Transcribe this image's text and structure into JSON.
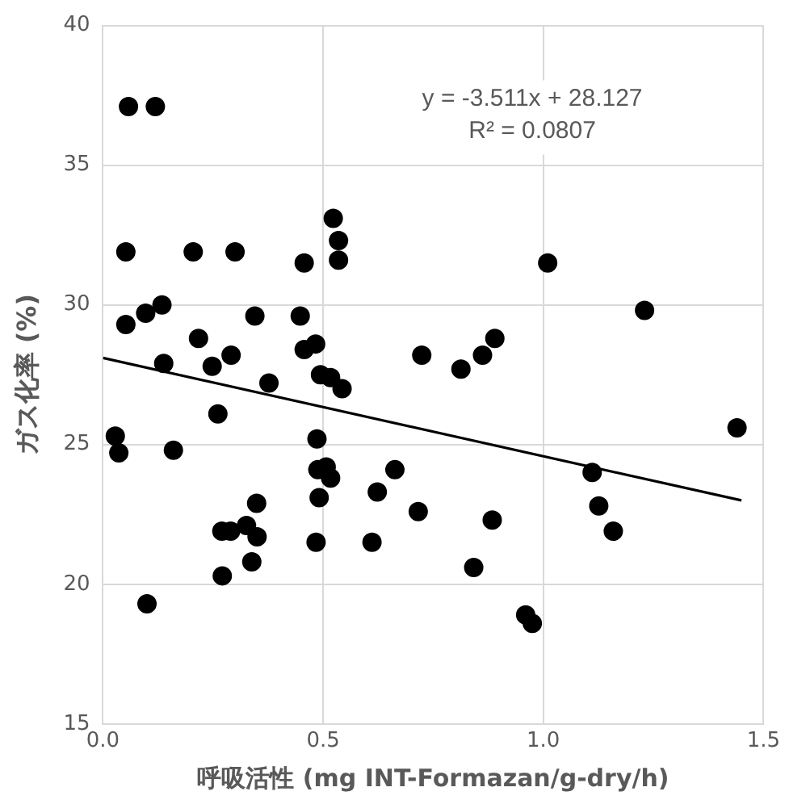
{
  "chart_data": {
    "type": "scatter",
    "xlabel": "呼吸活性 (mg INT-Formazan/g-dry/h)",
    "ylabel": "ガス化率 (%)",
    "xlim": [
      0,
      1.5
    ],
    "xticks": [
      {
        "value": 0,
        "label": "0.0"
      },
      {
        "value": 0.5,
        "label": "0.5"
      },
      {
        "value": 1,
        "label": "1.0"
      },
      {
        "value": 1.5,
        "label": "1.5"
      }
    ],
    "ylim": [
      15,
      40
    ],
    "yticks": [
      15,
      20,
      25,
      30,
      35,
      40
    ],
    "grid": true,
    "legend": false,
    "annotations": [
      "y = -3.511x + 28.127",
      "R² = 0.0807"
    ],
    "series": [
      {
        "type": "scatter",
        "marker": "circle",
        "color": "#000000",
        "x": [
          0.058,
          0.119,
          0.523,
          0.535,
          0.535,
          0.052,
          0.205,
          0.3,
          0.457,
          0.052,
          0.097,
          0.134,
          0.345,
          0.448,
          0.217,
          0.138,
          0.248,
          0.291,
          0.457,
          0.483,
          0.377,
          0.494,
          0.517,
          0.543,
          0.724,
          0.261,
          0.028,
          0.036,
          0.16,
          0.486,
          0.488,
          0.507,
          0.517,
          0.663,
          0.623,
          0.716,
          0.491,
          0.349,
          0.27,
          0.29,
          0.326,
          0.35,
          0.338,
          0.271,
          0.484,
          0.611,
          0.1,
          1.01,
          1.23,
          0.89,
          0.862,
          0.813,
          1.44,
          1.111,
          1.126,
          1.159,
          0.884,
          0.842,
          0.96,
          0.975
        ],
        "values": [
          37.1,
          37.1,
          33.1,
          32.3,
          31.6,
          31.9,
          31.9,
          31.9,
          31.5,
          29.3,
          29.7,
          30.0,
          29.6,
          29.6,
          28.8,
          27.9,
          27.8,
          28.2,
          28.4,
          28.6,
          27.2,
          27.5,
          27.4,
          27.0,
          28.2,
          26.1,
          25.3,
          24.7,
          24.8,
          25.2,
          24.1,
          24.2,
          23.8,
          24.1,
          23.3,
          22.6,
          23.1,
          22.9,
          21.9,
          21.9,
          22.1,
          21.7,
          20.8,
          20.3,
          21.5,
          21.5,
          19.3,
          31.5,
          29.8,
          28.8,
          28.2,
          27.7,
          25.6,
          24.0,
          22.8,
          21.9,
          22.3,
          20.6,
          18.9,
          18.6
        ]
      },
      {
        "type": "line",
        "marker": "none",
        "color": "#000000",
        "x": [
          0,
          1.45
        ],
        "values": [
          28.1,
          23.0
        ]
      }
    ]
  }
}
